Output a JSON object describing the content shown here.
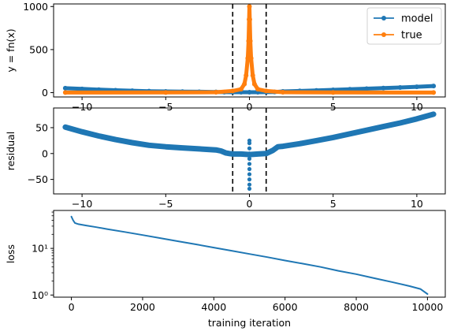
{
  "chart_data": [
    {
      "type": "line",
      "ylabel": "y = fn(x)",
      "xlim": [
        -11.7,
        11.7
      ],
      "ylim": [
        -50,
        1030
      ],
      "xticks": [
        -10,
        -5,
        0,
        5,
        10
      ],
      "xtick_labels": [
        "−10",
        "−5",
        "0",
        "5",
        "10"
      ],
      "yticks": [
        0,
        500,
        1000
      ],
      "ytick_labels": [
        "0",
        "500",
        "1000"
      ],
      "vlines": [
        -1,
        1
      ],
      "legend_position": "top-right",
      "series": [
        {
          "name": "model",
          "color": "#1f77b4",
          "x": [
            -11,
            -10,
            -9,
            -8,
            -7,
            -6,
            -5,
            -4,
            -3,
            -2,
            -1.5,
            -1,
            -0.5,
            0,
            0.5,
            1,
            1.5,
            2,
            3,
            4,
            5,
            6,
            7,
            8,
            9,
            10,
            11
          ],
          "y": [
            52,
            43,
            35,
            28,
            22,
            17,
            14,
            12,
            10,
            8,
            6,
            5,
            5,
            5,
            5,
            6,
            8,
            14,
            20,
            26,
            32,
            39,
            46,
            53,
            60,
            68,
            77
          ]
        },
        {
          "name": "true",
          "color": "#ff7f0e",
          "x": [
            -11,
            -5,
            -2,
            -1,
            -0.5,
            -0.3,
            -0.2,
            -0.1,
            -0.05,
            -0.02,
            0,
            0.02,
            0.05,
            0.1,
            0.2,
            0.3,
            0.5,
            1,
            2,
            5,
            11
          ],
          "y": [
            1,
            2,
            5,
            20,
            40,
            100,
            200,
            400,
            600,
            850,
            1000,
            850,
            600,
            400,
            200,
            100,
            40,
            20,
            5,
            2,
            1
          ]
        }
      ]
    },
    {
      "type": "scatter",
      "ylabel": "residual",
      "xlim": [
        -11.7,
        11.7
      ],
      "ylim": [
        -78,
        88
      ],
      "xticks": [
        -10,
        -5,
        0,
        5,
        10
      ],
      "xtick_labels": [
        "−10",
        "−5",
        "0",
        "5",
        "10"
      ],
      "yticks": [
        -50,
        0,
        50
      ],
      "ytick_labels": [
        "−50",
        "0",
        "50"
      ],
      "vlines": [
        -1,
        1
      ],
      "series": [
        {
          "color": "#1f77b4",
          "x": [
            -11,
            -10,
            -9,
            -8,
            -7,
            -6,
            -5,
            -4,
            -3,
            -2,
            -1.7,
            -1.4,
            -1.2,
            -1,
            -0.5,
            0,
            0.5,
            1,
            1.2,
            1.4,
            1.7,
            2,
            3,
            4,
            5,
            6,
            7,
            8,
            9,
            10,
            11
          ],
          "y": [
            51,
            42,
            34,
            27,
            21,
            16,
            13,
            11,
            9,
            7,
            5,
            1,
            0,
            -1,
            -1,
            -2,
            -1,
            0,
            3,
            6,
            13,
            14,
            19,
            25,
            31,
            38,
            45,
            52,
            59,
            67,
            76
          ]
        }
      ],
      "spike": {
        "x": 0,
        "y": [
          -68,
          -60,
          -50,
          -40,
          -30,
          -20,
          -10,
          0,
          10,
          20,
          25
        ]
      }
    },
    {
      "type": "line",
      "xlabel": "training iteration",
      "ylabel": "loss",
      "yscale": "log",
      "xlim": [
        -500,
        10500
      ],
      "ylim": [
        0.9,
        65
      ],
      "xticks": [
        0,
        2000,
        4000,
        6000,
        8000,
        10000
      ],
      "xtick_labels": [
        "0",
        "2000",
        "4000",
        "6000",
        "8000",
        "10000"
      ],
      "yticks": [
        1,
        10
      ],
      "ytick_labels": [
        "10⁰",
        "10¹"
      ],
      "series": [
        {
          "color": "#1f77b4",
          "x": [
            0,
            50,
            100,
            200,
            400,
            700,
            1000,
            1500,
            2000,
            2500,
            3000,
            3500,
            4000,
            4500,
            5000,
            5500,
            6000,
            6500,
            7000,
            7500,
            8000,
            8500,
            9000,
            9500,
            9800,
            10000
          ],
          "y": [
            48,
            40,
            35,
            33,
            31,
            28.5,
            26,
            22.5,
            19.3,
            16.6,
            14.2,
            12.2,
            10.4,
            8.9,
            7.6,
            6.5,
            5.5,
            4.7,
            4.0,
            3.3,
            2.8,
            2.3,
            1.9,
            1.55,
            1.35,
            1.05
          ]
        }
      ]
    }
  ]
}
